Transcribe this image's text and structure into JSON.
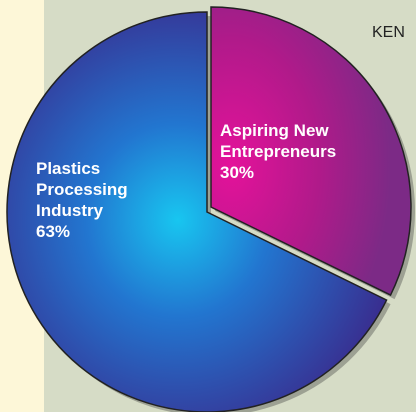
{
  "chart_data": {
    "type": "pie",
    "title": "KEN",
    "slices": [
      {
        "label_lines": [
          "Aspiring New",
          "Entrepreneurs"
        ],
        "value_text": "30%",
        "value": 30,
        "color": "#c4108e"
      },
      {
        "label_lines": [
          "Plastics",
          "Processing",
          "Industry"
        ],
        "value_text": "63%",
        "value": 63,
        "color": "#2a48b6"
      }
    ],
    "start_angle_deg": 0,
    "label_color": "#ffffff",
    "background_colors": {
      "left": "#fdf7d8",
      "right": "#d6dcc6"
    }
  }
}
